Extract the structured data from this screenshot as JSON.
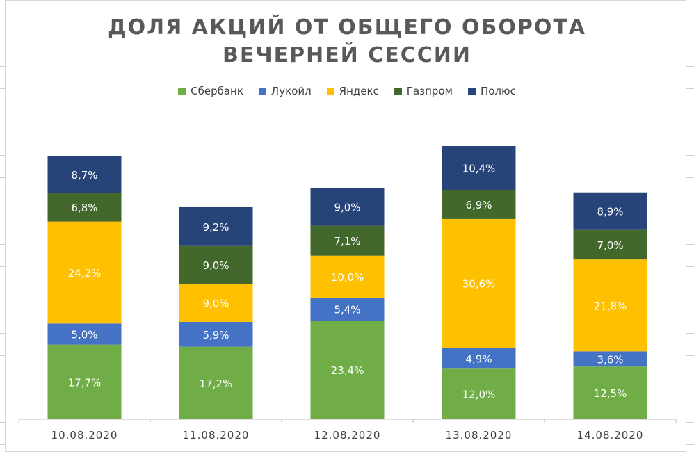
{
  "chart_data": {
    "type": "bar",
    "stacked": true,
    "title_lines": [
      "ДОЛЯ АКЦИЙ ОТ ОБЩЕГО ОБОРОТА",
      "ВЕЧЕРНЕЙ СЕССИИ"
    ],
    "categories": [
      "10.08.2020",
      "11.08.2020",
      "12.08.2020",
      "13.08.2020",
      "14.08.2020"
    ],
    "series": [
      {
        "name": "Сбербанк",
        "color": "#70ad47",
        "values": [
          17.7,
          17.2,
          23.4,
          12.0,
          12.5
        ],
        "labels": [
          "17,7%",
          "17,2%",
          "23,4%",
          "12,0%",
          "12,5%"
        ]
      },
      {
        "name": "Лукойл",
        "color": "#4472c4",
        "values": [
          5.0,
          5.9,
          5.4,
          4.9,
          3.6
        ],
        "labels": [
          "5,0%",
          "5,9%",
          "5,4%",
          "4,9%",
          "3,6%"
        ]
      },
      {
        "name": "Яндекс",
        "color": "#ffc000",
        "values": [
          24.2,
          9.0,
          10.0,
          30.6,
          21.8
        ],
        "labels": [
          "24,2%",
          "9,0%",
          "10,0%",
          "30,6%",
          "21,8%"
        ]
      },
      {
        "name": "Газпром",
        "color": "#43682b",
        "values": [
          6.8,
          9.0,
          7.1,
          6.9,
          7.0
        ],
        "labels": [
          "6,8%",
          "9,0%",
          "7,1%",
          "6,9%",
          "7,0%"
        ]
      },
      {
        "name": "Полюс",
        "color": "#264478",
        "values": [
          8.7,
          9.2,
          9.0,
          10.4,
          8.9
        ],
        "labels": [
          "8,7%",
          "9,2%",
          "9,0%",
          "10,4%",
          "8,9%"
        ]
      }
    ],
    "ylim": [
      0,
      66
    ],
    "legend_position": "top",
    "grid": false
  }
}
